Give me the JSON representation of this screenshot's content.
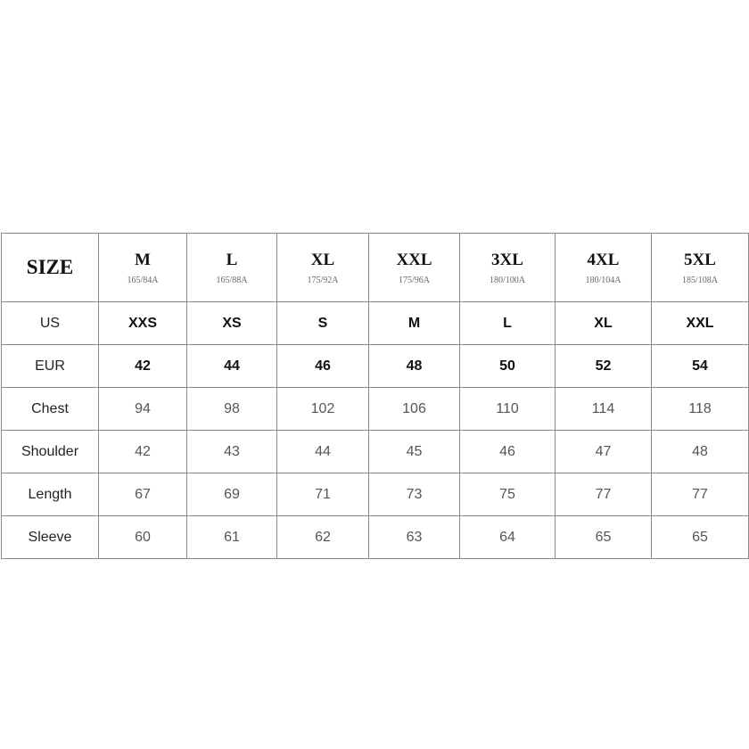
{
  "header": {
    "label": "SIZE",
    "sizes": [
      {
        "name": "M",
        "code": "165/84A"
      },
      {
        "name": "L",
        "code": "165/88A"
      },
      {
        "name": "XL",
        "code": "175/92A"
      },
      {
        "name": "XXL",
        "code": "175/96A"
      },
      {
        "name": "3XL",
        "code": "180/100A"
      },
      {
        "name": "4XL",
        "code": "180/104A"
      },
      {
        "name": "5XL",
        "code": "185/108A"
      }
    ]
  },
  "rows": [
    {
      "label": "US",
      "values": [
        "XXS",
        "XS",
        "S",
        "M",
        "L",
        "XL",
        "XXL"
      ]
    },
    {
      "label": "EUR",
      "values": [
        "42",
        "44",
        "46",
        "48",
        "50",
        "52",
        "54"
      ]
    },
    {
      "label": "Chest",
      "values": [
        "94",
        "98",
        "102",
        "106",
        "110",
        "114",
        "118"
      ]
    },
    {
      "label": "Shoulder",
      "values": [
        "42",
        "43",
        "44",
        "45",
        "46",
        "47",
        "48"
      ]
    },
    {
      "label": "Length",
      "values": [
        "67",
        "69",
        "71",
        "73",
        "75",
        "77",
        "77"
      ]
    },
    {
      "label": "Sleeve",
      "values": [
        "60",
        "61",
        "62",
        "63",
        "64",
        "65",
        "65"
      ]
    }
  ]
}
